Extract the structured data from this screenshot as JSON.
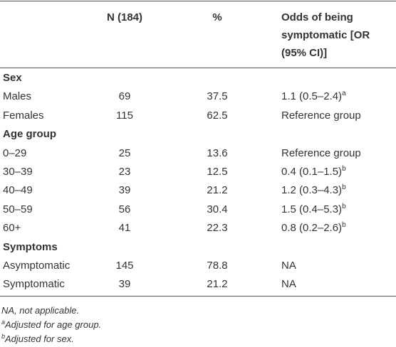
{
  "table": {
    "header": {
      "n": "N (184)",
      "pct": "%",
      "or": "Odds of being symptomatic [OR (95% CI)]"
    },
    "sections": [
      {
        "title": "Sex",
        "rows": [
          {
            "label": "Males",
            "n": 69,
            "pct": 37.5,
            "or": "1.1 (0.5–2.4)",
            "or_sup": "a"
          },
          {
            "label": "Females",
            "n": 115,
            "pct": 62.5,
            "or": "Reference group"
          }
        ]
      },
      {
        "title": "Age group",
        "rows": [
          {
            "label": "0–29",
            "n": 25,
            "pct": 13.6,
            "or": "Reference group"
          },
          {
            "label": "30–39",
            "n": 23,
            "pct": 12.5,
            "or": "0.4 (0.1–1.5)",
            "or_sup": "b"
          },
          {
            "label": "40–49",
            "n": 39,
            "pct": 21.2,
            "or": "1.2 (0.3–4.3)",
            "or_sup": "b"
          },
          {
            "label": "50–59",
            "n": 56,
            "pct": 30.4,
            "or": "1.5 (0.4–5.3)",
            "or_sup": "b"
          },
          {
            "label": "60+",
            "n": 41,
            "pct": 22.3,
            "or": "0.8 (0.2–2.6)",
            "or_sup": "b"
          }
        ]
      },
      {
        "title": "Symptoms",
        "rows": [
          {
            "label": "Asymptomatic",
            "n": 145,
            "pct": 78.8,
            "or": "NA"
          },
          {
            "label": "Symptomatic",
            "n": 39,
            "pct": 21.2,
            "or": "NA"
          }
        ]
      }
    ]
  },
  "footnotes": [
    {
      "text": "NA, not applicable."
    },
    {
      "sup": "a",
      "text": "Adjusted for age group."
    },
    {
      "sup": "b",
      "text": "Adjusted for sex."
    }
  ]
}
